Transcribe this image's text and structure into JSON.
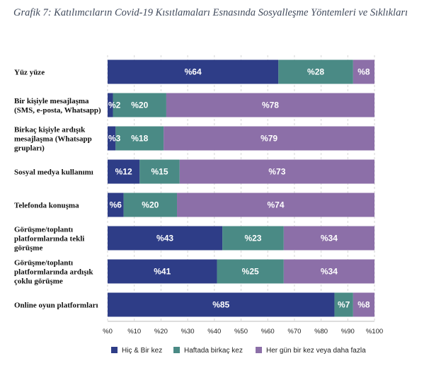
{
  "chart_data": {
    "type": "bar",
    "orientation": "horizontal",
    "stacked": true,
    "title": "Grafik 7: Katılımcıların Covid-19 Kısıtlamaları Esnasında Sosyalleşme Yöntemleri ve Sıklıkları",
    "categories": [
      [
        "Yüz yüze"
      ],
      [
        "Bir kişiyle mesajlaşma",
        "(SMS, e-posta, Whatsapp)"
      ],
      [
        "Birkaç kişiyle ardışık",
        "mesajlaşma (Whatsapp",
        "grupları)"
      ],
      [
        "Sosyal medya kullanımı"
      ],
      [
        "Telefonda konuşma"
      ],
      [
        "Görüşme/toplantı",
        "platformlarında tekli",
        "görüşme"
      ],
      [
        "Görüşme/toplantı",
        "platformlarında ardışık",
        "çoklu görüşme"
      ],
      [
        "Online oyun platformları"
      ]
    ],
    "series": [
      {
        "name": "Hiç & Bir kez",
        "color": "#2e3d87",
        "values": [
          64,
          2,
          3,
          12,
          6,
          43,
          41,
          85
        ],
        "labels": [
          "%64",
          "%2",
          "%3",
          "%12",
          "%6",
          "%43",
          "%41",
          "%85"
        ]
      },
      {
        "name": "Haftada birkaç kez",
        "color": "#4a8a85",
        "values": [
          28,
          20,
          18,
          15,
          20,
          23,
          25,
          7
        ],
        "labels": [
          "%28",
          "%20",
          "%18",
          "%15",
          "%20",
          "%23",
          "%25",
          "%7"
        ]
      },
      {
        "name": "Her gün bir kez veya daha fazla",
        "color": "#8c6fa8",
        "values": [
          8,
          78,
          79,
          73,
          74,
          34,
          34,
          8
        ],
        "labels": [
          "%8",
          "%78",
          "%79",
          "%73",
          "%74",
          "%34",
          "%34",
          "%8"
        ]
      }
    ],
    "xlim": [
      0,
      100
    ],
    "xticks": [
      "%0",
      "%10",
      "%20",
      "%30",
      "%40",
      "%50",
      "%60",
      "%70",
      "%80",
      "%90",
      "%100"
    ],
    "grid": true,
    "legend_position": "bottom"
  }
}
